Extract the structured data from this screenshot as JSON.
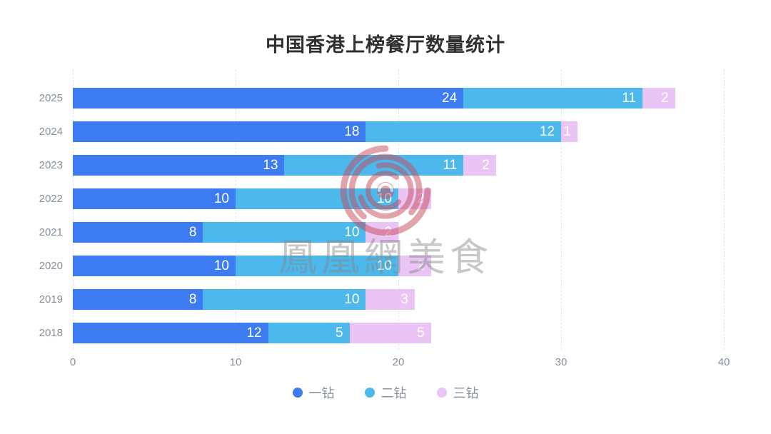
{
  "title": "中国香港上榜餐厅数量统计",
  "watermark": {
    "logo": "phoenix-swirl-logo",
    "text": "鳳凰網美食"
  },
  "colors": {
    "series_blue": "#3D7BF0",
    "series_light_blue": "#4DB8EC",
    "series_purple": "#EAC4F5",
    "title_text": "#2F2F2F",
    "axis_text": "#868E9C",
    "legend_text": "#8B929D",
    "gridline": "#E4E6EB",
    "value_label": "#FFFFFF",
    "background": "#FFFFFF",
    "watermark_red": "#C84A58",
    "watermark_gray": "#828282"
  },
  "chart_data": {
    "type": "bar",
    "orientation": "horizontal",
    "stacked": true,
    "title": "中国香港上榜餐厅数量统计",
    "categories": [
      "2025",
      "2024",
      "2023",
      "2022",
      "2021",
      "2020",
      "2019",
      "2018"
    ],
    "series": [
      {
        "name": "一钻",
        "color": "#3D7BF0",
        "values": [
          24,
          18,
          13,
          10,
          8,
          10,
          8,
          12
        ]
      },
      {
        "name": "二钻",
        "color": "#4DB8EC",
        "values": [
          11,
          12,
          11,
          10,
          10,
          10,
          10,
          5
        ]
      },
      {
        "name": "三钻",
        "color": "#EAC4F5",
        "values": [
          2,
          1,
          2,
          2,
          2,
          2,
          3,
          5
        ]
      }
    ],
    "totals": [
      37,
      31,
      26,
      22,
      20,
      22,
      21,
      22
    ],
    "xlabel": "",
    "ylabel": "",
    "xlim": [
      0,
      40
    ],
    "x_ticks": [
      0,
      10,
      20,
      30,
      40
    ],
    "grid": "vertical-dashed",
    "legend_position": "bottom",
    "value_labels": "inside-right"
  }
}
